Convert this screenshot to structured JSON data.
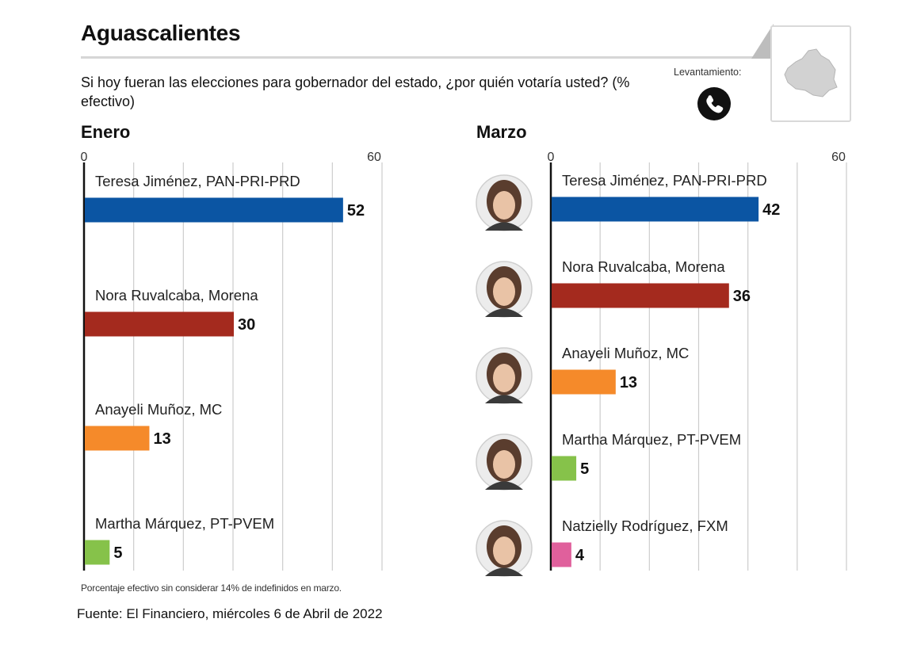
{
  "header": {
    "title": "Aguascalientes",
    "question": "Si hoy fueran las elecciones para gobernador del estado, ¿por quién votaría usted? (% efectivo)",
    "survey_method_label": "Levantamiento:",
    "survey_method_icon": "phone-icon",
    "state_map_icon": "aguascalientes-map-icon"
  },
  "colors": {
    "PAN-PRI-PRD": "#0b55a3",
    "Morena": "#a42a1e",
    "MC": "#f58a2a",
    "PT-PVEM": "#86c24a",
    "FXM": "#e0609c",
    "gridline": "#cccccc"
  },
  "chart_data": [
    {
      "type": "bar",
      "orientation": "horizontal",
      "title": "Enero",
      "xlim": [
        0,
        60
      ],
      "ticks": [
        0,
        60
      ],
      "grid": true,
      "categories": [
        "Teresa Jiménez, PAN-PRI-PRD",
        "Nora Ruvalcaba, Morena",
        "Anayeli Muñoz, MC",
        "Martha Márquez, PT-PVEM"
      ],
      "values": [
        52,
        30,
        13,
        5
      ],
      "parties": [
        "PAN-PRI-PRD",
        "Morena",
        "MC",
        "PT-PVEM"
      ]
    },
    {
      "type": "bar",
      "orientation": "horizontal",
      "title": "Marzo",
      "xlim": [
        0,
        60
      ],
      "ticks": [
        0,
        60
      ],
      "grid": true,
      "categories": [
        "Teresa Jiménez, PAN-PRI-PRD",
        "Nora Ruvalcaba, Morena",
        "Anayeli Muñoz, MC",
        "Martha Márquez, PT-PVEM",
        "Natzielly Rodríguez, FXM"
      ],
      "values": [
        42,
        36,
        13,
        5,
        4
      ],
      "parties": [
        "PAN-PRI-PRD",
        "Morena",
        "MC",
        "PT-PVEM",
        "FXM"
      ],
      "has_candidate_photos": true
    }
  ],
  "footer": {
    "note": "Porcentaje efectivo sin considerar 14% de indefinidos en marzo.",
    "source": "Fuente: El Financiero, miércoles 6 de Abril de 2022"
  }
}
